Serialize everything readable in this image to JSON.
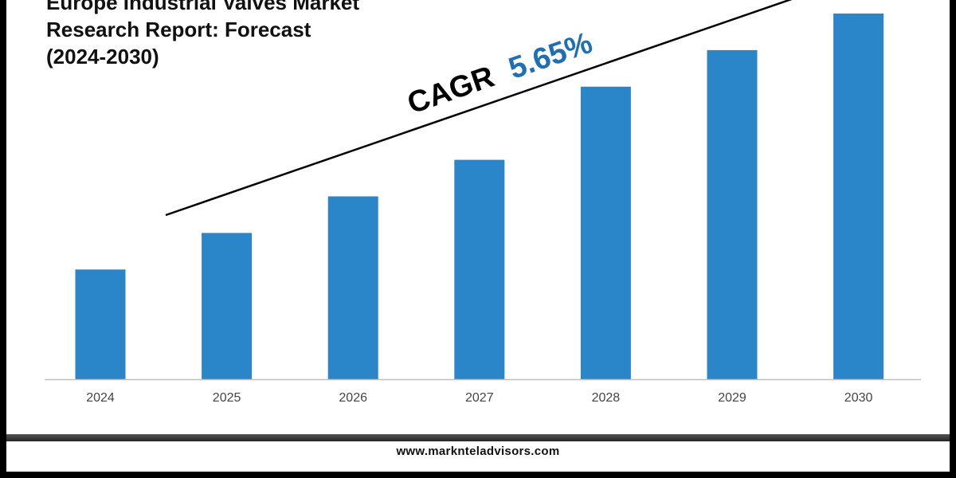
{
  "title_lines": [
    "Europe Industrial Valves Market",
    "Research Report: Forecast",
    "(2024-2030)"
  ],
  "annotation": {
    "label": "CAGR",
    "value": "5.65%",
    "label_color": "#000000",
    "value_color": "#1f6fb5"
  },
  "footer": {
    "url": "www.marknteladvisors.com"
  },
  "colors": {
    "bar": "#2a86c8",
    "axis": "#bfbfbf",
    "tick_label": "#444444"
  },
  "chart_data": {
    "type": "bar",
    "categories": [
      "2024",
      "2025",
      "2026",
      "2027",
      "2028",
      "2029",
      "2030"
    ],
    "series": [
      {
        "values": [
          30,
          40,
          50,
          60,
          80,
          90,
          100
        ]
      }
    ],
    "ylim": [
      0,
      100
    ],
    "grid": false,
    "legend": "none"
  }
}
